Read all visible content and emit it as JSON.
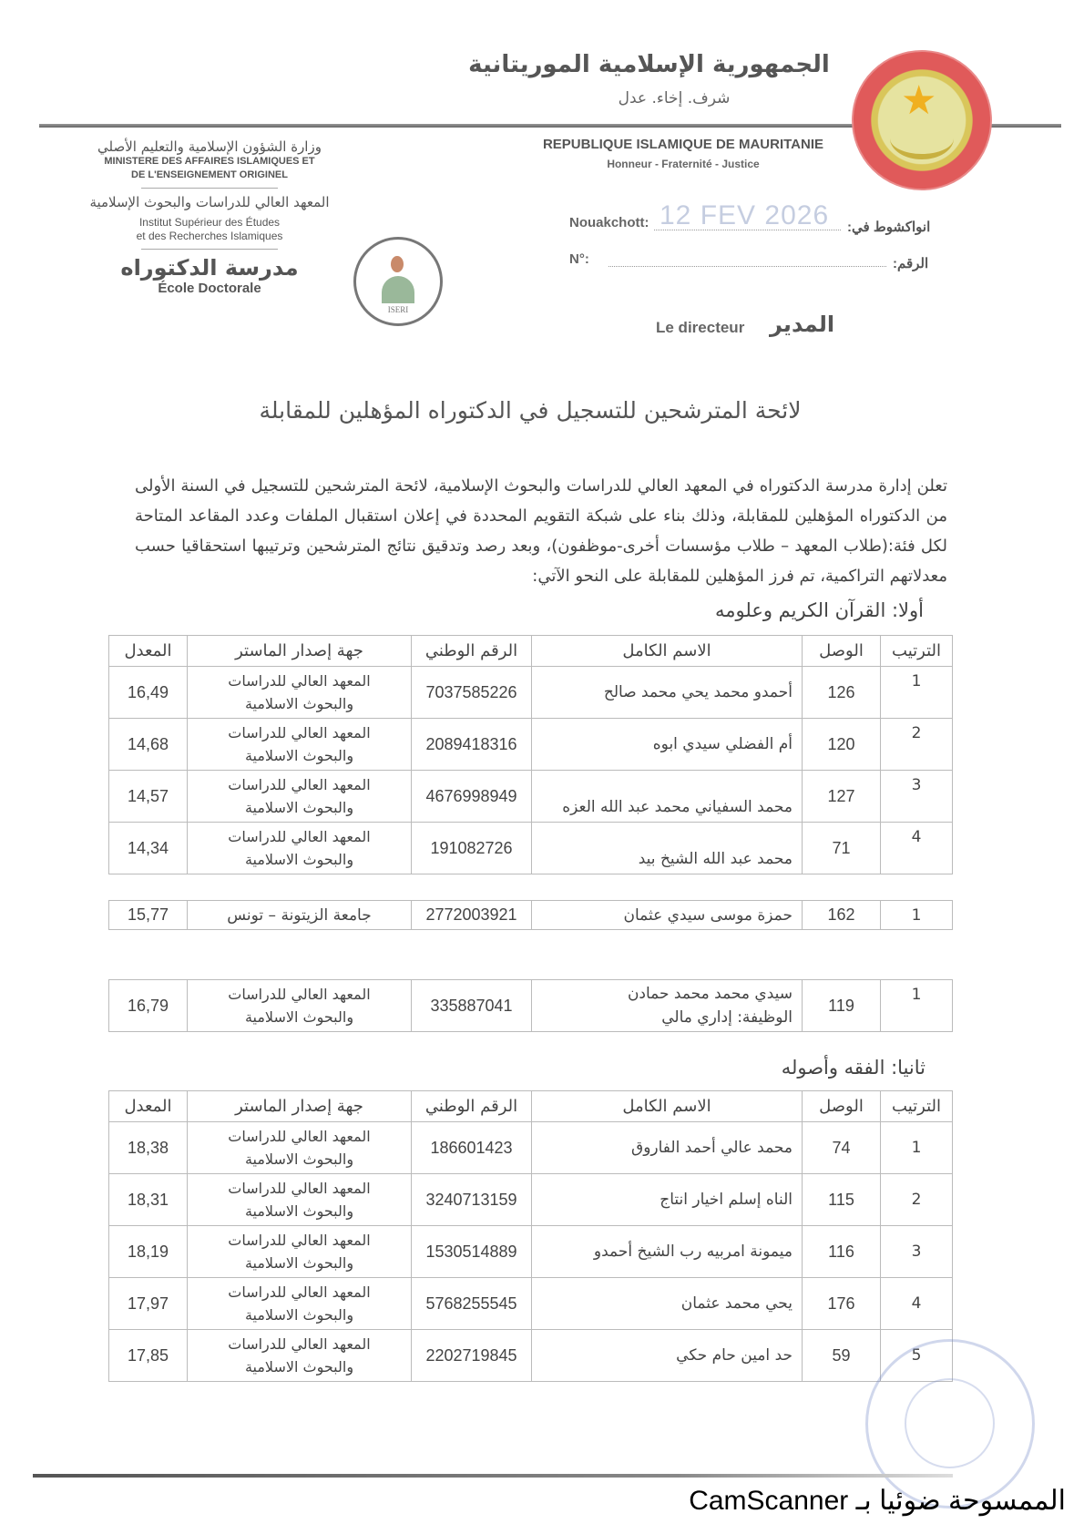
{
  "header": {
    "ar_title": "الجمهورية الإسلامية الموريتانية",
    "ar_motto": "شرف. إخاء. عدل",
    "fr_title": "REPUBLIQUE ISLAMIQUE DE MAURITANIE",
    "fr_motto": "Honneur - Fraternité - Justice",
    "ministry_ar": "وزارة الشؤون الإسلامية والتعليم الأصلي",
    "ministry_fr_1": "MINISTERE DES AFFAIRES ISLAMIQUES ET",
    "ministry_fr_2": "DE L'ENSEIGNEMENT ORIGINEL",
    "institute_ar": "المعهد العالي للدراسات والبحوث الإسلامية",
    "institute_fr_1": "Institut Supérieur des Études",
    "institute_fr_2": "et des Recherches Islamiques",
    "school_ar": "مدرسة الدكتوراه",
    "school_fr": "École Doctorale",
    "logo_text": "ISERI",
    "place_fr": "Nouakchott:",
    "place_ar": "انواكشوط في:",
    "date": "12 FEV 2026",
    "number_fr": "N°:",
    "number_ar": "الرقم:",
    "director_fr": "Le directeur",
    "director_ar": "المدير"
  },
  "document": {
    "title": "لائحة المترشحين للتسجيل في الدكتوراه المؤهلين للمقابلة",
    "paragraph": "تعلن إدارة مدرسة الدكتوراه في المعهد العالي للدراسات والبحوث الإسلامية، لائحة المترشحين للتسجيل في السنة الأولى من الدكتوراه المؤهلين للمقابلة، وذلك بناء على شبكة التقويم المحددة في إعلان استقبال الملفات وعدد المقاعد المتاحة لكل فئة:(طلاب المعهد – طلاب مؤسسات أخرى-موظفون)، وبعد رصد وتدقيق نتائج المترشحين وترتيبها استحقاقيا حسب معدلاتهم التراكمية، تم فرز المؤهلين للمقابلة على النحو الآتي:",
    "section_1": "أولا: القرآن الكريم وعلومه",
    "section_2": "ثانيا: الفقه وأصوله"
  },
  "columns": [
    "الترتيب",
    "الوصل",
    "الاسم الكامل",
    "الرقم الوطني",
    "جهة إصدار الماستر",
    "المعدل"
  ],
  "inst_line1": "المعهد العالي للدراسات",
  "inst_line2": "والبحوث الاسلامية",
  "table1": [
    {
      "rank": "1",
      "receipt": "126",
      "name": "أحمدو محمد يحي محمد صالح",
      "nni": "7037585226",
      "avg": "16,49"
    },
    {
      "rank": "2",
      "receipt": "120",
      "name": "أم الفضلي سيدي ابوه",
      "nni": "2089418316",
      "avg": "14,68"
    },
    {
      "rank": "3",
      "receipt": "127",
      "name": "محمد السفياني محمد عبد الله العزه",
      "nni": "4676998949",
      "avg": "14,57"
    },
    {
      "rank": "4",
      "receipt": "71",
      "name": "محمد عبد الله الشيخ بيد",
      "nni": "191082726",
      "avg": "14,34"
    }
  ],
  "table2": {
    "rank": "1",
    "receipt": "162",
    "name": "حمزة موسى سيدي عثمان",
    "nni": "2772003921",
    "institution": "جامعة الزيتونة – تونس",
    "avg": "15,77"
  },
  "table3": {
    "rank": "1",
    "receipt": "119",
    "name": "سيدي محمد محمد حمادن",
    "job": "الوظيفة: إداري مالي",
    "nni": "335887041",
    "avg": "16,79"
  },
  "table4": [
    {
      "rank": "1",
      "receipt": "74",
      "name": "محمد عالي أحمد الفاروق",
      "nni": "186601423",
      "avg": "18,38"
    },
    {
      "rank": "2",
      "receipt": "115",
      "name": "الناه إسلم اخيار انتاج",
      "nni": "3240713159",
      "avg": "18,31"
    },
    {
      "rank": "3",
      "receipt": "116",
      "name": "ميمونة امربيه رب الشيخ أحمدو",
      "nni": "1530514889",
      "avg": "18,19"
    },
    {
      "rank": "4",
      "receipt": "176",
      "name": "يحي محمد عثمان",
      "nni": "5768255545",
      "avg": "17,97"
    },
    {
      "rank": "5",
      "receipt": "59",
      "name": "حد امين حام حكي",
      "nni": "2202719845",
      "avg": "17,85"
    }
  ],
  "footer": {
    "scanner": "الممسوحة ضوئيا بـ CamScanner"
  }
}
